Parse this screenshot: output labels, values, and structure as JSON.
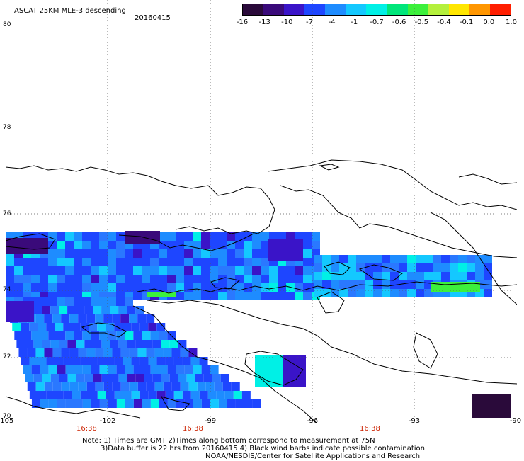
{
  "header": {
    "title": "ASCAT 25KM MLE-3 descending",
    "date": "20160415"
  },
  "colorbar": {
    "labels": [
      "-16",
      "-13",
      "-10",
      "-7",
      "-4",
      "-1",
      "-0.7",
      "-0.6",
      "-0.5",
      "-0.4",
      "-0.1",
      "0.0",
      "1.0"
    ],
    "colors": [
      "#2a0a3a",
      "#3a0a7a",
      "#3a14c8",
      "#1e46ff",
      "#1e8cff",
      "#14c8ff",
      "#00f0e6",
      "#00e67a",
      "#3cf03c",
      "#b4f03c",
      "#ffe600",
      "#ff9600",
      "#ff1e00"
    ]
  },
  "axes": {
    "lat_labels": [
      "80",
      "78",
      "76",
      "74",
      "72",
      "70"
    ],
    "lon_labels": [
      "-105",
      "-102",
      "-99",
      "-96",
      "-93",
      "-90"
    ],
    "time_labels": [
      "16:38",
      "16:38",
      "16:38"
    ]
  },
  "notes": {
    "line1": "Note: 1) Times are GMT 2)Times along bottom correspond to measurement at 75N",
    "line2": "3)Data buffer is 22 hrs from 20160415 4) Black wind barbs indicate possible contamination",
    "line3": "NOAA/NESDIS/Center for Satellite Applications and Research"
  },
  "style": {
    "swath_colors": [
      "#1e46ff",
      "#1e8cff",
      "#2a78ff",
      "#14c8ff",
      "#00f0e6",
      "#3a14c8"
    ]
  }
}
